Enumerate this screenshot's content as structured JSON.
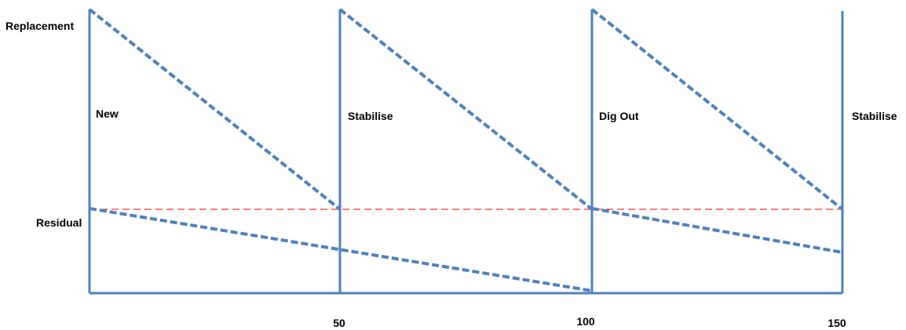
{
  "y_labels": {
    "top": "Replacement",
    "residual": "Residual"
  },
  "x_ticks": [
    "50",
    "100",
    "150"
  ],
  "phases": [
    "New",
    "Stabilise",
    "Dig Out",
    "Stabilise"
  ],
  "colors": {
    "line": "#4f81bd",
    "residual_line": "#ff0000",
    "text": "#000000"
  }
}
